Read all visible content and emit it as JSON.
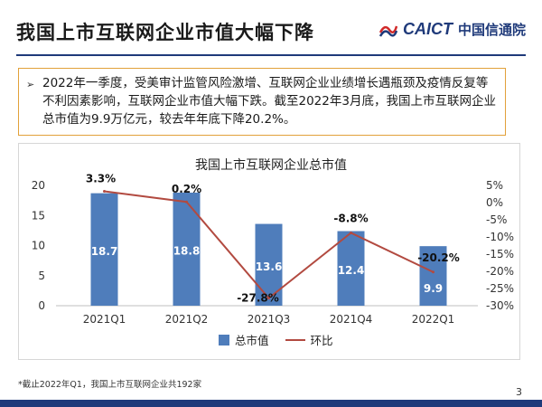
{
  "header": {
    "title": "我国上市互联网企业市值大幅下降",
    "logo_en": "CAICT",
    "logo_cn": "中国信通院"
  },
  "summary": {
    "text": "2022年一季度，受美审计监管风险激增、互联网企业业绩增长遇瓶颈及疫情反复等不利因素影响，互联网企业市值大幅下跌。截至2022年3月底，我国上市互联网企业总市值为9.9万亿元，较去年年底下降20.2%。"
  },
  "footnote": "*截止2022年Q1，我国上市互联网企业共192家",
  "page_number": "3",
  "colors": {
    "bar": "#4f7dbb",
    "line": "#b24a40",
    "accent": "#1f3a7a",
    "border": "#e2a13a"
  },
  "chart_data": {
    "type": "bar+line",
    "title": "我国上市互联网企业总市值",
    "categories": [
      "2021Q1",
      "2021Q2",
      "2021Q3",
      "2021Q4",
      "2022Q1"
    ],
    "series": [
      {
        "name": "总市值",
        "type": "bar",
        "axis": "left",
        "values": [
          18.7,
          18.8,
          13.6,
          12.4,
          9.9
        ],
        "labels": [
          "18.7",
          "18.8",
          "13.6",
          "12.4",
          "9.9"
        ]
      },
      {
        "name": "环比",
        "type": "line",
        "axis": "right",
        "values": [
          3.3,
          0.2,
          -27.8,
          -8.8,
          -20.2
        ],
        "labels": [
          "3.3%",
          "0.2%",
          "-27.8%",
          "-8.8%",
          "-20.2%"
        ]
      }
    ],
    "y_left": {
      "range": [
        0,
        20
      ],
      "ticks": [
        "0",
        "5",
        "10",
        "15",
        "20"
      ]
    },
    "y_right": {
      "range": [
        -30,
        5
      ],
      "ticks": [
        "5%",
        "0%",
        "-5%",
        "-10%",
        "-15%",
        "-20%",
        "-25%",
        "-30%"
      ]
    },
    "legend": "bottom",
    "grid": false
  }
}
